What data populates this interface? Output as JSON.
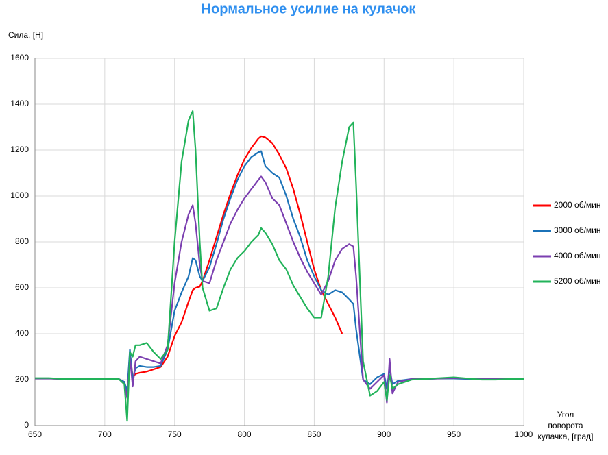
{
  "chart_data": {
    "type": "line",
    "title": "Нормальное усилие на кулачок",
    "y_label": "Сила, [Н]",
    "x_label": [
      "Угол",
      "поворота",
      "кулачка, [град]"
    ],
    "x": [
      650,
      660,
      670,
      680,
      690,
      700,
      710,
      714,
      716,
      718,
      720,
      722,
      725,
      730,
      735,
      740,
      745,
      750,
      755,
      760,
      763,
      765,
      768,
      770,
      775,
      780,
      785,
      790,
      795,
      800,
      805,
      810,
      812,
      815,
      820,
      825,
      830,
      835,
      840,
      845,
      850,
      855,
      860,
      865,
      870,
      875,
      878,
      880,
      885,
      890,
      895,
      900,
      902,
      904,
      906,
      910,
      920,
      930,
      940,
      950,
      960,
      970,
      980,
      990,
      1000
    ],
    "series": [
      {
        "name": "2000 об/мин",
        "color": "#ff0000",
        "values": [
          205,
          205,
          203,
          203,
          203,
          203,
          203,
          190,
          130,
          320,
          210,
          225,
          230,
          235,
          245,
          255,
          300,
          390,
          450,
          540,
          590,
          600,
          605,
          630,
          720,
          820,
          920,
          1010,
          1090,
          1160,
          1210,
          1250,
          1260,
          1255,
          1230,
          1180,
          1120,
          1030,
          920,
          800,
          680,
          590,
          530,
          470,
          400,
          null,
          null,
          null,
          null,
          null,
          null,
          null,
          null,
          null,
          null,
          null,
          null,
          null,
          null,
          null,
          null,
          null,
          null,
          null,
          null
        ]
      },
      {
        "name": "3000 об/мин",
        "color": "#1b72b8",
        "values": [
          205,
          205,
          203,
          203,
          203,
          203,
          203,
          190,
          150,
          330,
          200,
          250,
          260,
          255,
          255,
          260,
          330,
          500,
          580,
          650,
          730,
          720,
          650,
          630,
          690,
          790,
          900,
          990,
          1070,
          1130,
          1170,
          1190,
          1195,
          1130,
          1100,
          1080,
          1000,
          900,
          820,
          720,
          650,
          590,
          570,
          590,
          580,
          550,
          530,
          420,
          200,
          180,
          210,
          225,
          160,
          250,
          180,
          195,
          203,
          203,
          205,
          205,
          203,
          203,
          203,
          203,
          203
        ]
      },
      {
        "name": "4000 об/мин",
        "color": "#7b3fb0",
        "values": [
          205,
          205,
          203,
          203,
          203,
          203,
          203,
          180,
          120,
          300,
          170,
          280,
          300,
          290,
          280,
          270,
          350,
          620,
          800,
          920,
          960,
          880,
          700,
          630,
          620,
          720,
          800,
          880,
          940,
          990,
          1030,
          1070,
          1085,
          1060,
          990,
          960,
          880,
          800,
          730,
          670,
          620,
          570,
          630,
          720,
          770,
          790,
          780,
          650,
          200,
          160,
          190,
          220,
          100,
          290,
          140,
          190,
          203,
          203,
          205,
          207,
          205,
          203,
          203,
          203,
          203
        ]
      },
      {
        "name": "5200 об/мин",
        "color": "#22b35a",
        "values": [
          207,
          207,
          203,
          203,
          203,
          203,
          203,
          180,
          20,
          320,
          300,
          350,
          350,
          360,
          320,
          290,
          330,
          800,
          1150,
          1330,
          1370,
          1200,
          800,
          600,
          500,
          510,
          600,
          680,
          730,
          760,
          800,
          830,
          860,
          840,
          790,
          720,
          680,
          610,
          560,
          510,
          470,
          470,
          650,
          950,
          1150,
          1300,
          1320,
          1050,
          280,
          130,
          150,
          190,
          110,
          220,
          160,
          180,
          200,
          203,
          207,
          210,
          205,
          200,
          200,
          203,
          203
        ]
      }
    ],
    "xlim": [
      650,
      1000
    ],
    "xticks": [
      650,
      700,
      750,
      800,
      850,
      900,
      950,
      1000
    ],
    "ylim": [
      0,
      1600
    ],
    "yticks": [
      0,
      200,
      400,
      600,
      800,
      1000,
      1200,
      1400,
      1600
    ],
    "grid": true,
    "legend": "right"
  }
}
